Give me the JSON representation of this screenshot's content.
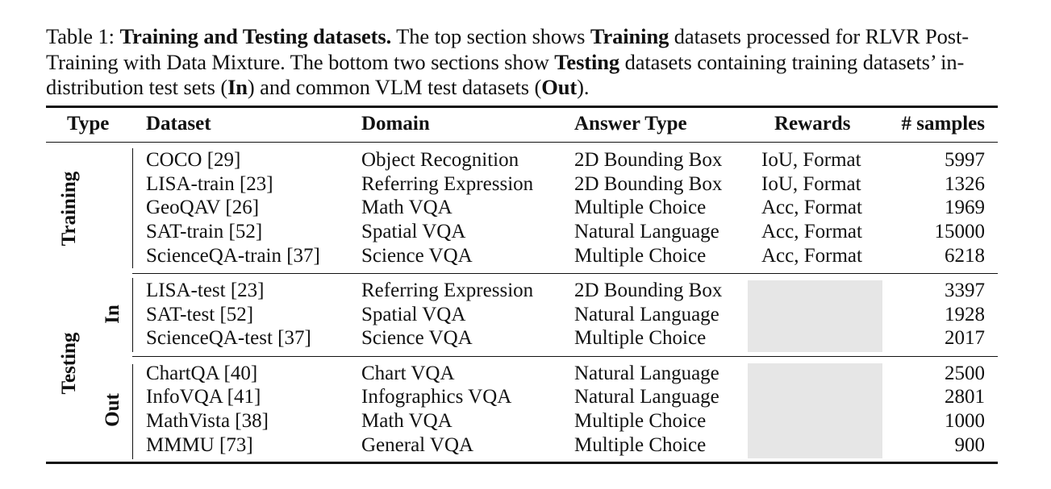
{
  "caption": {
    "prefix": "Table 1: ",
    "bold_title": "Training and Testing datasets.",
    "part1": " The top section shows ",
    "bold_training": "Training",
    "part2": " datasets processed for RLVR Post-Training with Data Mixture. The bottom two sections show ",
    "bold_testing": "Testing",
    "part3": " datasets containing training datasets’ in-distribution test sets (",
    "bold_in": "In",
    "part4": ") and common VLM test datasets (",
    "bold_out": "Out",
    "part5": ")."
  },
  "headers": {
    "type": "Type",
    "dataset": "Dataset",
    "domain": "Domain",
    "answer_type": "Answer Type",
    "rewards": "Rewards",
    "samples": "# samples"
  },
  "groups": {
    "training": "Training",
    "testing": "Testing",
    "in": "In",
    "out": "Out"
  },
  "training_rows": [
    {
      "dataset": "COCO [29]",
      "domain": "Object Recognition",
      "answer": "2D Bounding Box",
      "rewards": "IoU, Format",
      "samples": "5997"
    },
    {
      "dataset": "LISA-train [23]",
      "domain": "Referring Expression",
      "answer": "2D Bounding Box",
      "rewards": "IoU, Format",
      "samples": "1326"
    },
    {
      "dataset": "GeoQAV [26]",
      "domain": "Math VQA",
      "answer": "Multiple Choice",
      "rewards": "Acc, Format",
      "samples": "1969"
    },
    {
      "dataset": "SAT-train [52]",
      "domain": "Spatial VQA",
      "answer": "Natural Language",
      "rewards": "Acc, Format",
      "samples": "15000"
    },
    {
      "dataset": "ScienceQA-train [37]",
      "domain": "Science VQA",
      "answer": "Multiple Choice",
      "rewards": "Acc, Format",
      "samples": "6218"
    }
  ],
  "in_rows": [
    {
      "dataset": "LISA-test [23]",
      "domain": "Referring Expression",
      "answer": "2D Bounding Box",
      "samples": "3397"
    },
    {
      "dataset": "SAT-test [52]",
      "domain": "Spatial VQA",
      "answer": "Natural Language",
      "samples": "1928"
    },
    {
      "dataset": "ScienceQA-test [37]",
      "domain": "Science VQA",
      "answer": "Multiple Choice",
      "samples": "2017"
    }
  ],
  "out_rows": [
    {
      "dataset": "ChartQA [40]",
      "domain": "Chart VQA",
      "answer": "Natural Language",
      "samples": "2500"
    },
    {
      "dataset": "InfoVQA [41]",
      "domain": "Infographics VQA",
      "answer": "Natural Language",
      "samples": "2801"
    },
    {
      "dataset": "MathVista [38]",
      "domain": "Math VQA",
      "answer": "Multiple Choice",
      "samples": "1000"
    },
    {
      "dataset": "MMMU [73]",
      "domain": "General VQA",
      "answer": "Multiple Choice",
      "samples": "900"
    }
  ]
}
